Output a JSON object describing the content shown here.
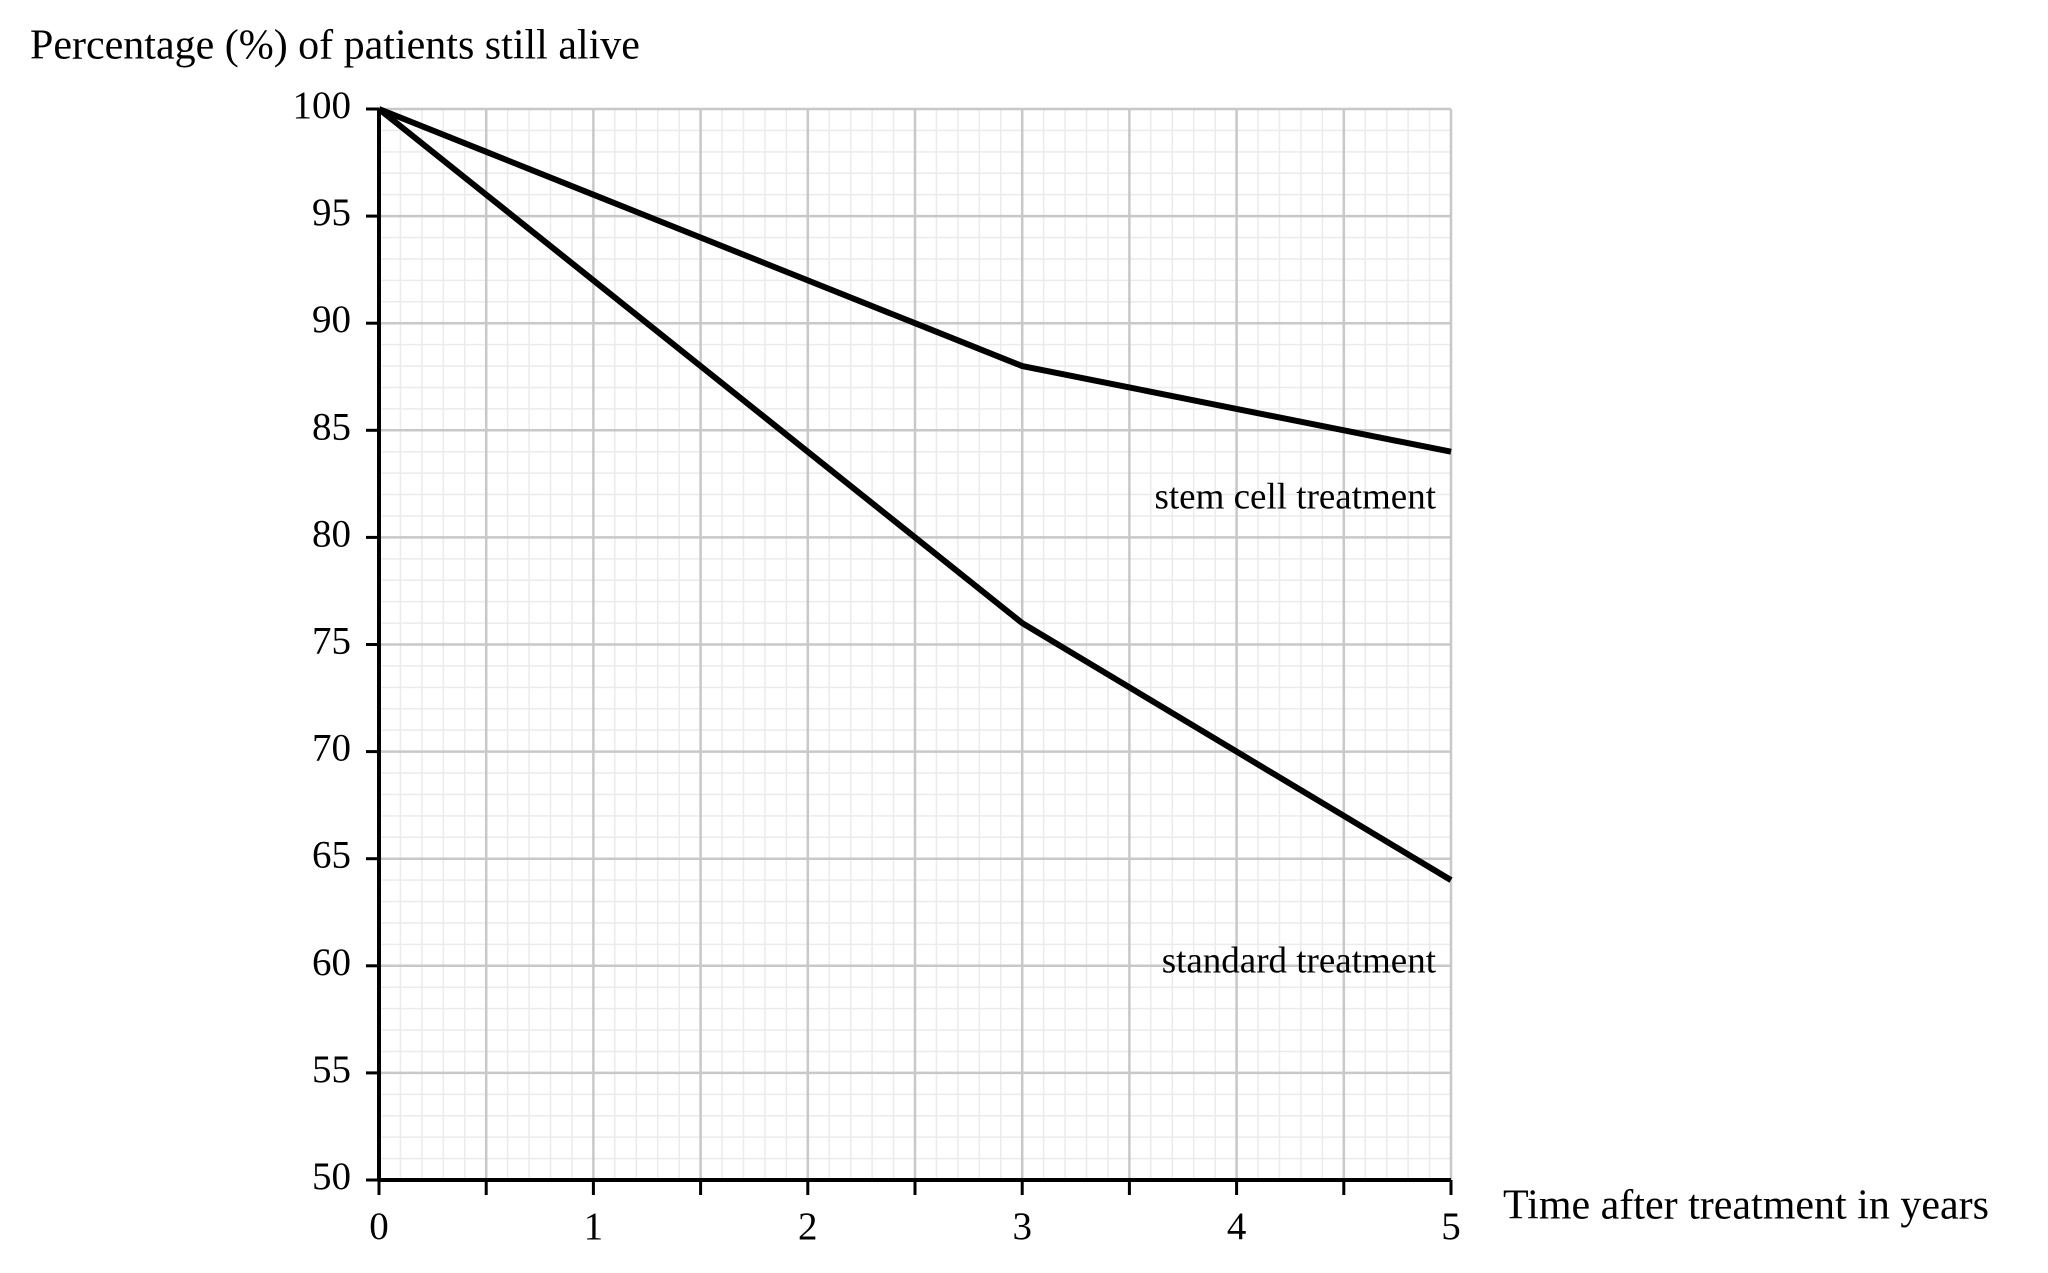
{
  "chart_data": {
    "type": "line",
    "y_label": "Percentage (%) of patients still alive",
    "x_label": "Time after treatment in years",
    "x": [
      0,
      0.5,
      1,
      1.5,
      2,
      2.5,
      3,
      3.5,
      4,
      4.5,
      5
    ],
    "series": [
      {
        "name": "stem cell treatment",
        "color": "#000000",
        "values": [
          100,
          98,
          96,
          94,
          92,
          90,
          88,
          87,
          86,
          85,
          84
        ]
      },
      {
        "name": "standard treatment",
        "color": "#000000",
        "values": [
          100,
          96,
          92,
          88,
          84,
          80,
          76,
          73,
          70,
          67,
          64
        ]
      }
    ],
    "xlim": [
      0,
      5
    ],
    "xticks": [
      0,
      1,
      2,
      3,
      4,
      5
    ],
    "x_minor_ticks": [
      0.5,
      1.5,
      2.5,
      3.5,
      4.5
    ],
    "ylim": [
      50,
      100
    ],
    "yticks": [
      50,
      55,
      60,
      65,
      70,
      75,
      80,
      85,
      90,
      95,
      100
    ],
    "grid": true,
    "minor_grid": true
  }
}
